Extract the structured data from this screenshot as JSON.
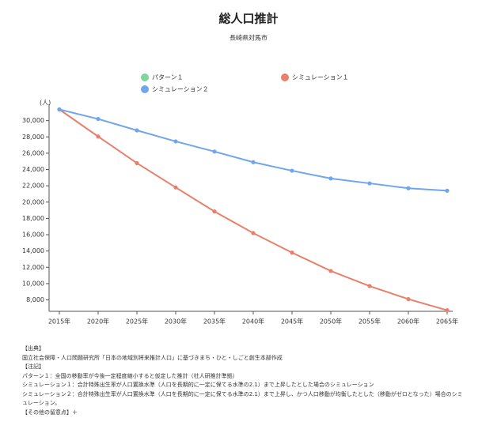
{
  "chart_data": {
    "type": "line",
    "title": "総人口推計",
    "subtitle": "長崎県対馬市",
    "y_unit": "(人)",
    "categories": [
      "2015年",
      "2020年",
      "2025年",
      "2030年",
      "2035年",
      "2040年",
      "2045年",
      "2050年",
      "2055年",
      "2060年",
      "2065年"
    ],
    "series": [
      {
        "name": "パターン１",
        "color": "#7fd4a0",
        "values": [
          null,
          null,
          null,
          null,
          null,
          null,
          null,
          null,
          null,
          null,
          null
        ]
      },
      {
        "name": "シミュレーション１",
        "color": "#e8806a",
        "values": [
          31370,
          28050,
          24780,
          21800,
          18850,
          16200,
          13800,
          11550,
          9700,
          8100,
          6730
        ]
      },
      {
        "name": "シミュレーション２",
        "color": "#6fa6ec",
        "values": [
          31370,
          30200,
          28800,
          27450,
          26200,
          24900,
          23850,
          22900,
          22300,
          21700,
          21400
        ]
      }
    ],
    "ylim": [
      6600,
      32000
    ],
    "yticks": [
      {
        "value": 8000,
        "label": "8,000"
      },
      {
        "value": 10000,
        "label": "10,000"
      },
      {
        "value": 12000,
        "label": "12,000"
      },
      {
        "value": 14000,
        "label": "14,000"
      },
      {
        "value": 16000,
        "label": "16,000"
      },
      {
        "value": 18000,
        "label": "18,000"
      },
      {
        "value": 20000,
        "label": "20,000"
      },
      {
        "value": 22000,
        "label": "22,000"
      },
      {
        "value": 24000,
        "label": "24,000"
      },
      {
        "value": 26000,
        "label": "26,000"
      },
      {
        "value": 28000,
        "label": "28,000"
      },
      {
        "value": 30000,
        "label": "30,000"
      }
    ]
  },
  "notes": {
    "source_heading": "【出典】",
    "source": "国立社会保障・人口問題研究所「日本の地域別将来推計人口」に基づきまち・ひと・しごと創生本部作成",
    "notes_heading": "【注記】",
    "lines": [
      "パターン１：全国の移動率が今後一定程度縮小すると仮定した推計（社人研推計準拠）",
      "シミュレーション１：合計特殊出生率が人口置換水準（人口を長期的に一定に保てる水準の2.1）まで上昇したとした場合のシミュレーション",
      "シミュレーション２：合計特殊出生率が人口置換水準（人口を長期的に一定に保てる水準の2.1）まで上昇し、かつ人口移動が均衡したとした（移動がゼロとなった）場合のシミュレーション。"
    ],
    "other": "【その他の留意点】＋"
  }
}
